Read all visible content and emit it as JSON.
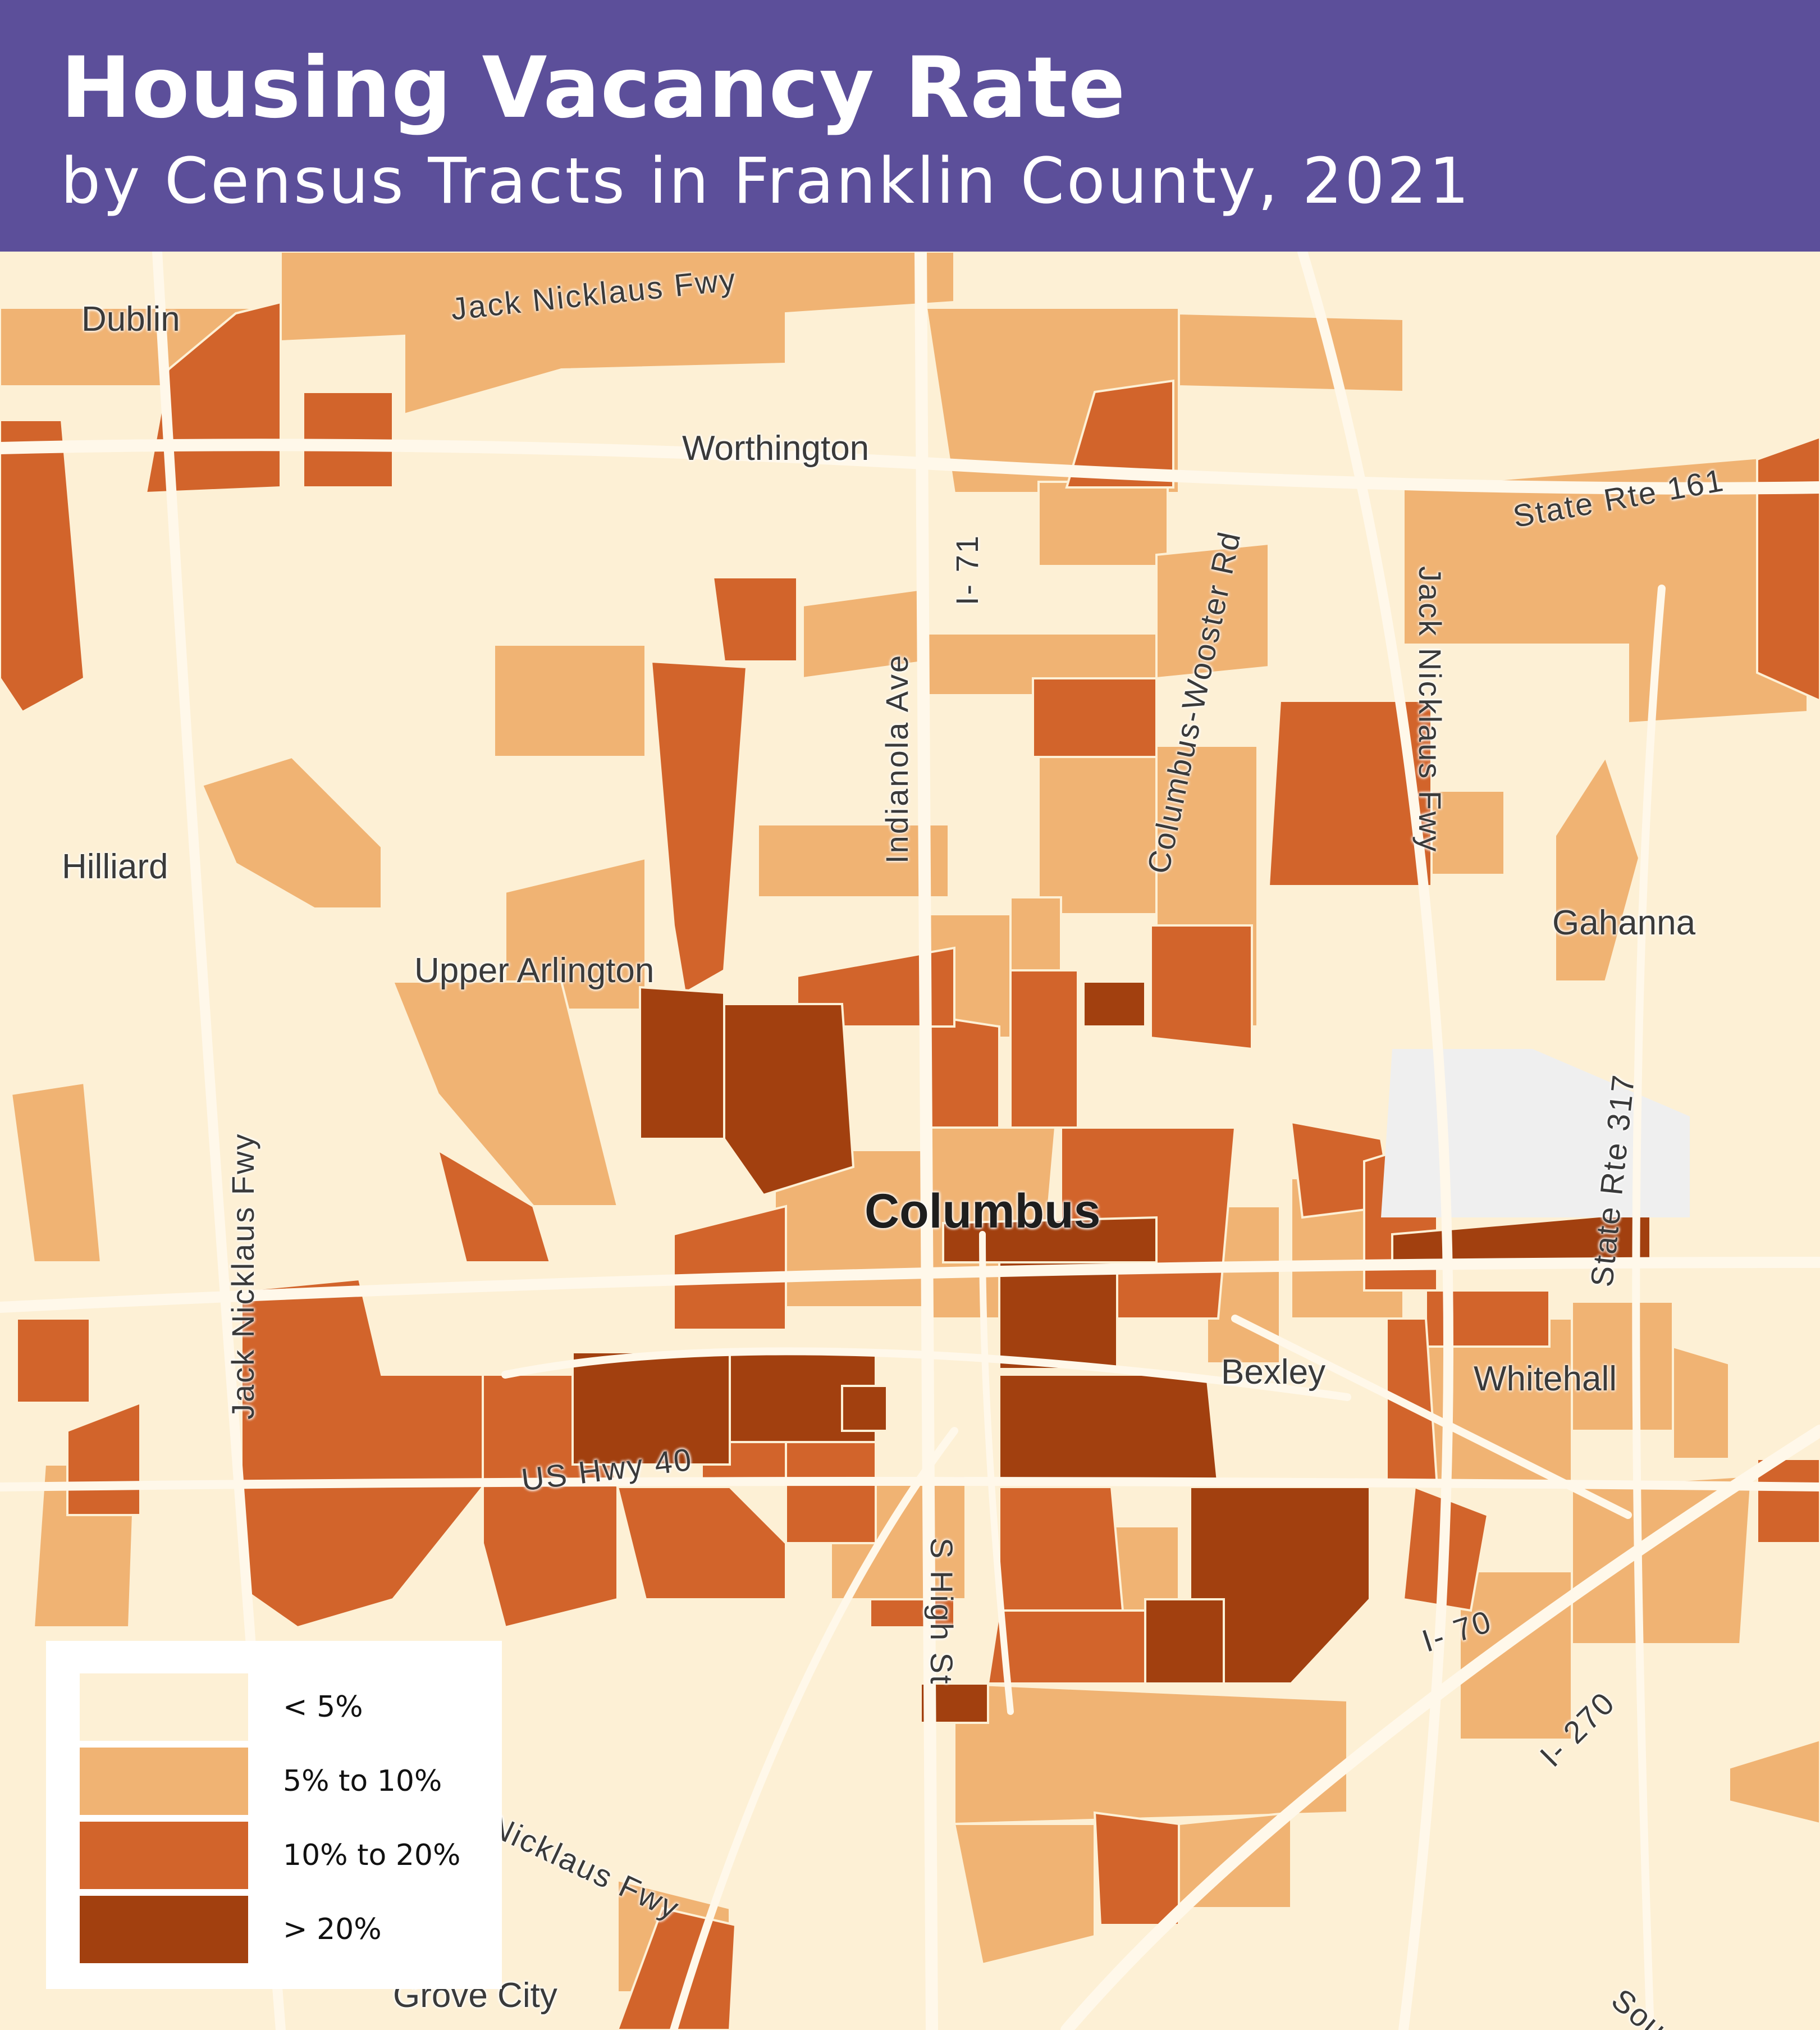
{
  "header": {
    "title": "Housing Vacancy Rate",
    "subtitle": "by Census Tracts in Franklin County, 2021"
  },
  "colors": {
    "header_bg": "#5c4f9a",
    "lt5": "#fdf0d5",
    "5to10": "#f0b373",
    "10to20": "#d2642b",
    "gt20": "#a2400f",
    "no_data": "#efefef",
    "roads": "#fff8ea"
  },
  "legend": {
    "items": [
      {
        "label": "< 5%",
        "color": "#fdf0d5"
      },
      {
        "label": "5% to 10%",
        "color": "#f0b373"
      },
      {
        "label": "10% to 20%",
        "color": "#d2642b"
      },
      {
        "label": "> 20%",
        "color": "#a2400f"
      }
    ]
  },
  "places": {
    "dublin": "Dublin",
    "worthington": "Worthington",
    "hilliard": "Hilliard",
    "upper_arlington": "Upper Arlington",
    "gahanna": "Gahanna",
    "columbus": "Columbus",
    "bexley": "Bexley",
    "whitehall": "Whitehall",
    "grove_city": "Grove City"
  },
  "roads": {
    "jack_nicklaus_north": "Jack Nicklaus Fwy",
    "state_rte_161": "State Rte 161",
    "i71": "I- 71",
    "indianola": "Indianola Ave",
    "columbus_wooster": "Columbus-Wooster Rd",
    "jack_nicklaus_east": "Jack Nicklaus Fwy",
    "jack_nicklaus_west": "Jack Nicklaus Fwy",
    "state_rte_317": "State Rte 317",
    "us_hwy_40": "US Hwy 40",
    "s_high_st": "S High St",
    "i70": "I- 70",
    "i270": "I- 270",
    "nicklaus_south": "Nicklaus Fwy",
    "sou": "Sou"
  }
}
